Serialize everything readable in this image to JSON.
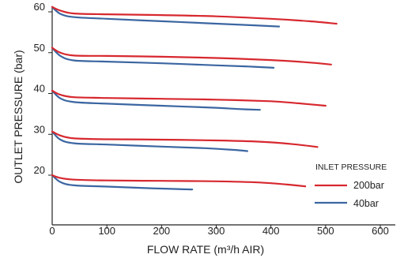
{
  "chart_data": {
    "type": "line",
    "xlabel": "FLOW RATE (m³/h AIR)",
    "ylabel": "OUTLET PRESSURE (bar)",
    "xlim": [
      0,
      620
    ],
    "ylim": [
      10,
      62
    ],
    "x_ticks": [
      0,
      100,
      200,
      300,
      400,
      500,
      600
    ],
    "y_ticks": [
      20,
      30,
      40,
      50,
      60
    ],
    "grid": false,
    "legend": {
      "title": "INLET PRESSURE",
      "placement": "bottom-right",
      "entries": [
        {
          "label": "200bar",
          "color": "#d7282f"
        },
        {
          "label": "40bar",
          "color": "#3b66a1"
        }
      ]
    },
    "series": [
      {
        "label": "200bar",
        "color": "#d7282f",
        "setpoint": 60,
        "points": [
          [
            0,
            61.2
          ],
          [
            15,
            60.3
          ],
          [
            40,
            59.6
          ],
          [
            100,
            59.4
          ],
          [
            200,
            59.2
          ],
          [
            300,
            58.9
          ],
          [
            400,
            58.3
          ],
          [
            470,
            57.7
          ],
          [
            520,
            57.1
          ]
        ]
      },
      {
        "label": "40bar",
        "color": "#3b66a1",
        "setpoint": 60,
        "points": [
          [
            0,
            61.2
          ],
          [
            15,
            59.5
          ],
          [
            40,
            58.7
          ],
          [
            100,
            58.3
          ],
          [
            200,
            57.7
          ],
          [
            300,
            57.1
          ],
          [
            370,
            56.7
          ],
          [
            415,
            56.4
          ]
        ]
      },
      {
        "label": "200bar",
        "color": "#d7282f",
        "setpoint": 50,
        "points": [
          [
            0,
            51.2
          ],
          [
            15,
            50.0
          ],
          [
            40,
            49.3
          ],
          [
            100,
            49.2
          ],
          [
            200,
            49.0
          ],
          [
            300,
            48.7
          ],
          [
            400,
            48.2
          ],
          [
            460,
            47.7
          ],
          [
            510,
            47.1
          ]
        ]
      },
      {
        "label": "40bar",
        "color": "#3b66a1",
        "setpoint": 50,
        "points": [
          [
            0,
            51.2
          ],
          [
            15,
            49.2
          ],
          [
            40,
            48.1
          ],
          [
            100,
            47.8
          ],
          [
            200,
            47.4
          ],
          [
            300,
            46.9
          ],
          [
            360,
            46.6
          ],
          [
            405,
            46.3
          ]
        ]
      },
      {
        "label": "200bar",
        "color": "#d7282f",
        "setpoint": 40,
        "points": [
          [
            0,
            40.7
          ],
          [
            15,
            39.7
          ],
          [
            40,
            39.1
          ],
          [
            100,
            38.9
          ],
          [
            200,
            38.7
          ],
          [
            300,
            38.5
          ],
          [
            400,
            38.1
          ],
          [
            450,
            37.6
          ],
          [
            500,
            37.0
          ]
        ]
      },
      {
        "label": "40bar",
        "color": "#3b66a1",
        "setpoint": 40,
        "points": [
          [
            0,
            40.7
          ],
          [
            15,
            38.8
          ],
          [
            40,
            37.9
          ],
          [
            100,
            37.5
          ],
          [
            200,
            37.0
          ],
          [
            300,
            36.5
          ],
          [
            340,
            36.2
          ],
          [
            380,
            36.0
          ]
        ]
      },
      {
        "label": "200bar",
        "color": "#d7282f",
        "setpoint": 30,
        "points": [
          [
            0,
            30.7
          ],
          [
            15,
            29.7
          ],
          [
            40,
            29.0
          ],
          [
            100,
            28.8
          ],
          [
            200,
            28.7
          ],
          [
            300,
            28.5
          ],
          [
            380,
            28.2
          ],
          [
            440,
            27.6
          ],
          [
            485,
            26.9
          ]
        ]
      },
      {
        "label": "40bar",
        "color": "#3b66a1",
        "setpoint": 30,
        "points": [
          [
            0,
            30.7
          ],
          [
            15,
            28.7
          ],
          [
            40,
            27.8
          ],
          [
            100,
            27.5
          ],
          [
            200,
            27.0
          ],
          [
            280,
            26.6
          ],
          [
            330,
            26.2
          ],
          [
            357,
            25.9
          ]
        ]
      },
      {
        "label": "200bar",
        "color": "#d7282f",
        "setpoint": 20,
        "points": [
          [
            0,
            20.0
          ],
          [
            15,
            19.3
          ],
          [
            40,
            18.9
          ],
          [
            100,
            18.7
          ],
          [
            200,
            18.6
          ],
          [
            300,
            18.5
          ],
          [
            380,
            18.2
          ],
          [
            430,
            17.7
          ],
          [
            475,
            17.1
          ]
        ]
      },
      {
        "label": "40bar",
        "color": "#3b66a1",
        "setpoint": 20,
        "points": [
          [
            0,
            20.0
          ],
          [
            15,
            18.3
          ],
          [
            40,
            17.5
          ],
          [
            100,
            17.2
          ],
          [
            180,
            16.8
          ],
          [
            230,
            16.6
          ],
          [
            256,
            16.5
          ]
        ]
      }
    ]
  }
}
